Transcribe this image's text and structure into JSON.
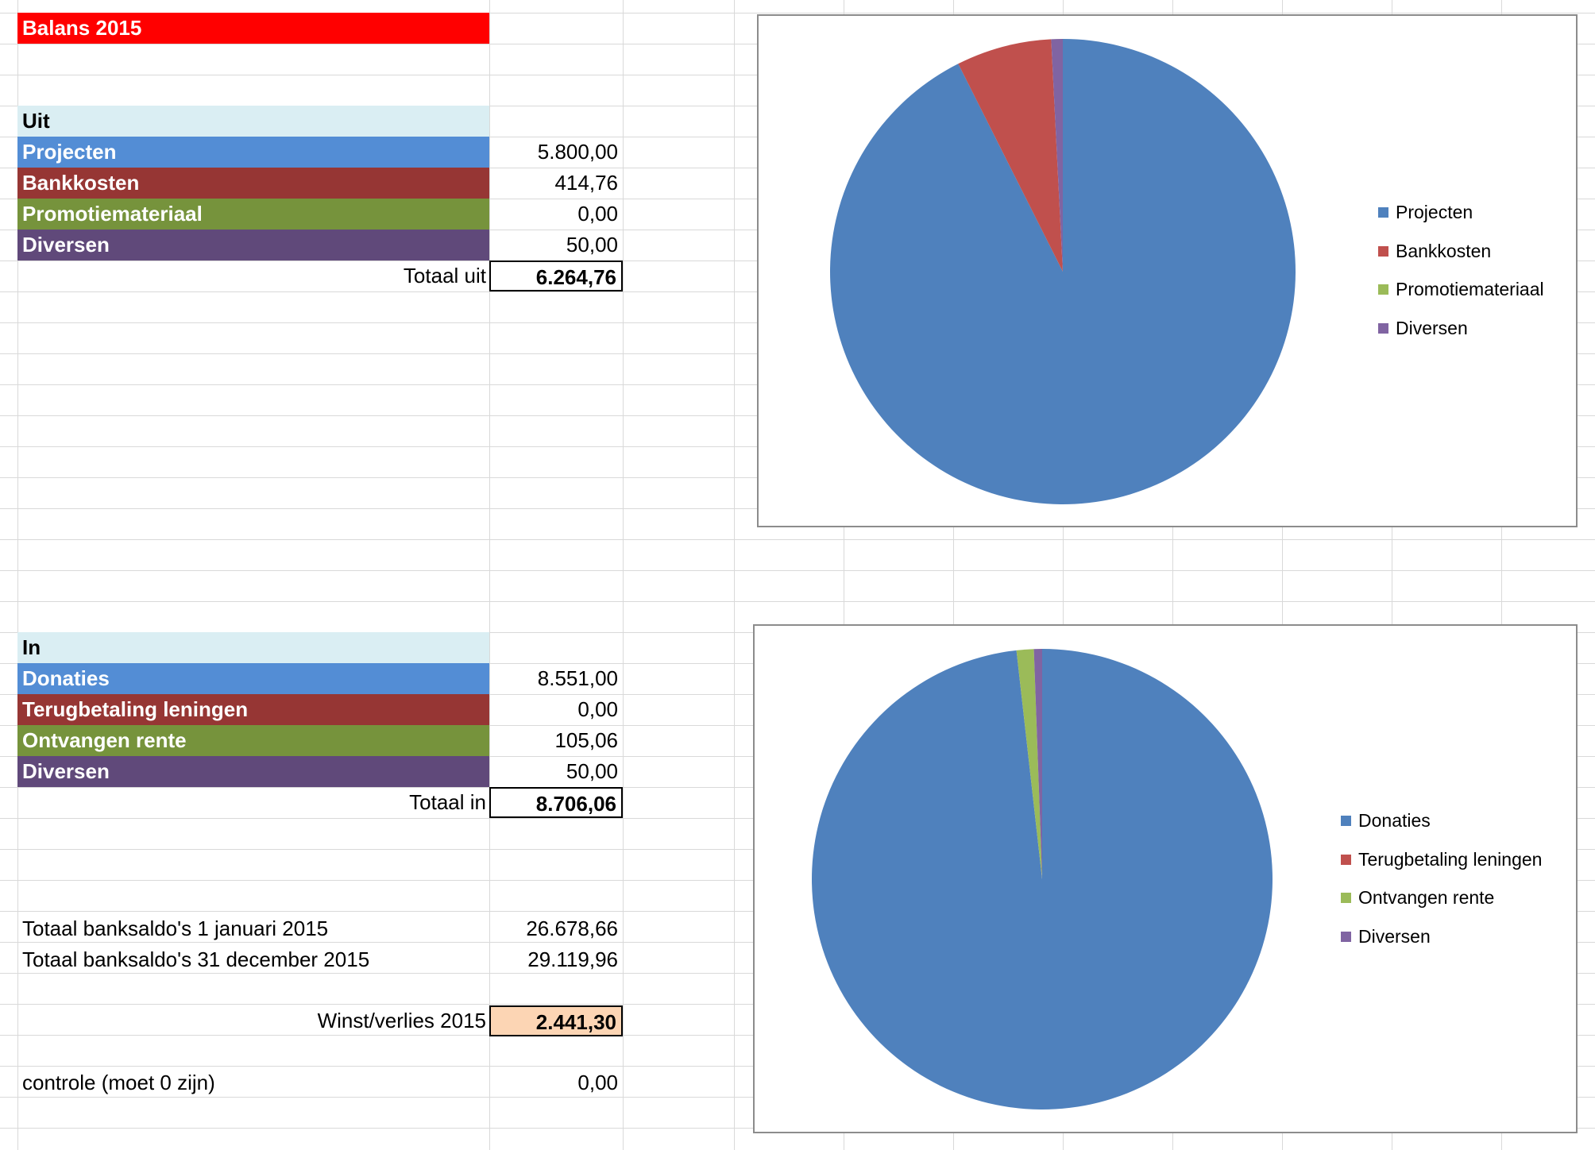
{
  "sheet": {
    "title": "Balans 2015",
    "uit": {
      "header": "Uit",
      "rows": [
        {
          "label": "Projecten",
          "value": "5.800,00",
          "color": "#538DD5"
        },
        {
          "label": "Bankkosten",
          "value": "414,76",
          "color": "#963634"
        },
        {
          "label": "Promotiemateriaal",
          "value": "0,00",
          "color": "#76933C"
        },
        {
          "label": "Diversen",
          "value": "50,00",
          "color": "#60497A"
        }
      ],
      "total_label": "Totaal uit",
      "total_value": "6.264,76"
    },
    "in": {
      "header": "In",
      "rows": [
        {
          "label": "Donaties",
          "value": "8.551,00",
          "color": "#538DD5"
        },
        {
          "label": "Terugbetaling leningen",
          "value": "0,00",
          "color": "#963634"
        },
        {
          "label": "Ontvangen rente",
          "value": "105,06",
          "color": "#76933C"
        },
        {
          "label": "Diversen",
          "value": "50,00",
          "color": "#60497A"
        }
      ],
      "total_label": "Totaal in",
      "total_value": "8.706,06"
    },
    "saldo_start_label": "Totaal banksaldo's 1 januari 2015",
    "saldo_start_value": "26.678,66",
    "saldo_end_label": "Totaal banksaldo's 31 december 2015",
    "saldo_end_value": "29.119,96",
    "winst_label": "Winst/verlies 2015",
    "winst_value": "2.441,30",
    "controle_label": "controle (moet 0 zijn)",
    "controle_value": "0,00"
  },
  "colors": {
    "title_bg": "#FF0000",
    "header_bg": "#DAEEF3",
    "winst_bg": "#FCD5B4"
  },
  "chart_data": [
    {
      "type": "pie",
      "title": "",
      "categories": [
        "Projecten",
        "Bankkosten",
        "Promotiemateriaal",
        "Diversen"
      ],
      "values": [
        5800.0,
        414.76,
        0.0,
        50.0
      ],
      "colors": [
        "#4F81BD",
        "#C0504D",
        "#9BBB59",
        "#8064A2"
      ],
      "legend": "right"
    },
    {
      "type": "pie",
      "title": "",
      "categories": [
        "Donaties",
        "Terugbetaling leningen",
        "Ontvangen rente",
        "Diversen"
      ],
      "values": [
        8551.0,
        0.0,
        105.06,
        50.0
      ],
      "colors": [
        "#4F81BD",
        "#C0504D",
        "#9BBB59",
        "#8064A2"
      ],
      "legend": "right"
    }
  ]
}
